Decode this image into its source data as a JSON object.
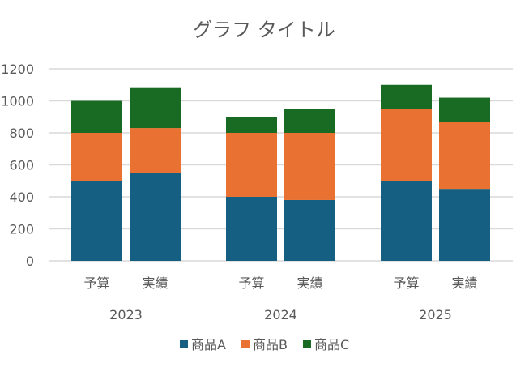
{
  "chart_data": {
    "type": "bar",
    "stacked": true,
    "title": "グラフ タイトル",
    "xlabel": "",
    "ylabel": "",
    "ylim": [
      0,
      1200
    ],
    "yticks": [
      0,
      200,
      400,
      600,
      800,
      1000,
      1200
    ],
    "grid": true,
    "legend_position": "bottom",
    "groups": [
      "2023",
      "2024",
      "2025"
    ],
    "subcategories": [
      "予算",
      "実績"
    ],
    "series": [
      {
        "name": "商品A",
        "color": "#156082",
        "values": [
          [
            500,
            550
          ],
          [
            400,
            380
          ],
          [
            500,
            450
          ]
        ]
      },
      {
        "name": "商品B",
        "color": "#E97132",
        "values": [
          [
            300,
            280
          ],
          [
            400,
            420
          ],
          [
            450,
            420
          ]
        ]
      },
      {
        "name": "商品C",
        "color": "#196B24",
        "values": [
          [
            200,
            250
          ],
          [
            100,
            150
          ],
          [
            150,
            150
          ]
        ]
      }
    ]
  }
}
